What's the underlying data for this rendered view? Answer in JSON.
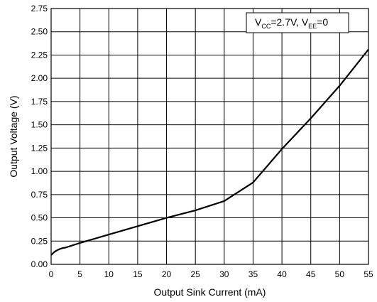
{
  "chart_data": {
    "type": "line",
    "xlabel": "Output Sink Current (mA)",
    "ylabel": "Output Voltage (V)",
    "xlim": [
      0,
      55
    ],
    "ylim": [
      0,
      2.75
    ],
    "x_ticks": [
      "0",
      "5",
      "10",
      "15",
      "20",
      "25",
      "30",
      "35",
      "40",
      "45",
      "50",
      "55"
    ],
    "y_ticks": [
      "0.00",
      "0.25",
      "0.50",
      "0.75",
      "1.00",
      "1.25",
      "1.50",
      "1.75",
      "2.00",
      "2.25",
      "2.50",
      "2.75"
    ],
    "grid": true,
    "legend_position": "top-right",
    "annotation": {
      "v1": "V",
      "sub1": "CC",
      "eq1": "=2.7V, ",
      "v2": "V",
      "sub2": "EE",
      "eq2": "=0"
    },
    "series": [
      {
        "x": [
          0,
          0.5,
          1,
          1.5,
          2,
          2.5,
          3,
          3.5,
          4,
          5,
          10,
          15,
          20,
          25,
          30,
          35,
          40,
          45,
          50,
          55
        ],
        "y": [
          0.1,
          0.13,
          0.15,
          0.165,
          0.175,
          0.18,
          0.19,
          0.2,
          0.21,
          0.23,
          0.32,
          0.41,
          0.5,
          0.58,
          0.68,
          0.88,
          1.24,
          1.57,
          1.92,
          2.31
        ]
      }
    ],
    "colors": {
      "line": "#000000",
      "grid": "#000000",
      "background": "#ffffff"
    }
  }
}
